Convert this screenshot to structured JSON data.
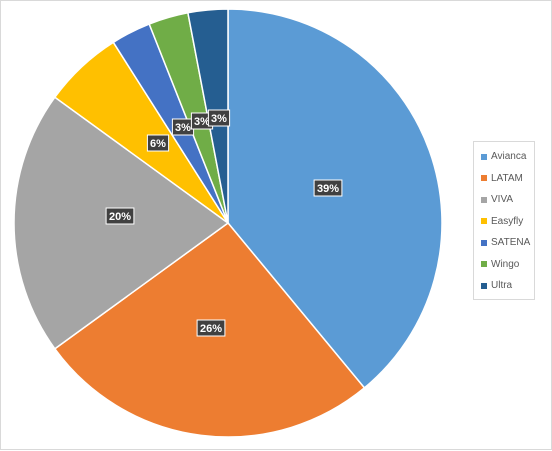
{
  "chart_data": {
    "type": "pie",
    "title": "",
    "categories": [
      "Avianca",
      "LATAM",
      "VIVA",
      "Easyfly",
      "SATENA",
      "Wingo",
      "Ultra"
    ],
    "values": [
      39,
      26,
      20,
      6,
      3,
      3,
      3
    ],
    "data_labels": [
      "39%",
      "26%",
      "20%",
      "6%",
      "3%",
      "3%",
      "3%"
    ],
    "colors": [
      "#5b9bd5",
      "#ed7d31",
      "#a5a5a5",
      "#ffc000",
      "#4472c4",
      "#70ad47",
      "#255e91"
    ],
    "legend_position": "right",
    "start_angle": "12 o'clock, clockwise"
  }
}
